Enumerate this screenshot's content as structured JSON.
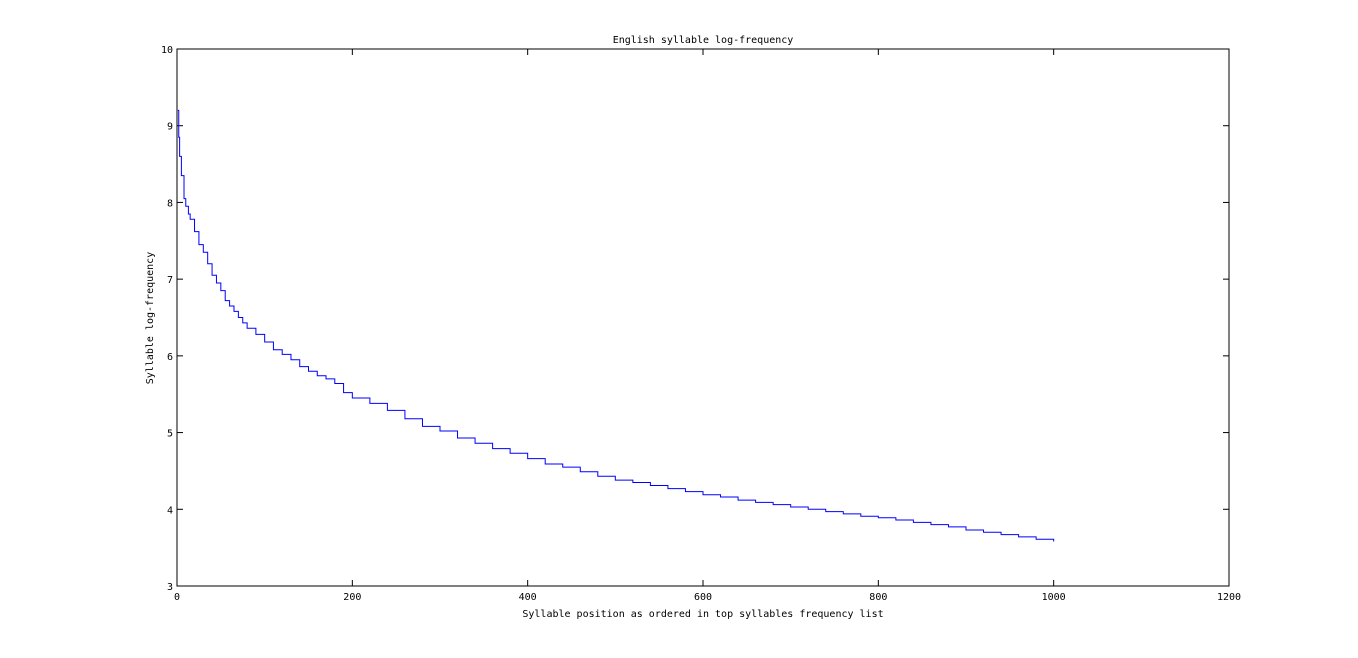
{
  "chart_data": {
    "type": "line",
    "title": "English syllable log-frequency",
    "xlabel": "Syllable position as ordered in top syllables frequency list",
    "ylabel": "Syllable log-frequency",
    "xlim": [
      0,
      1200
    ],
    "ylim": [
      3,
      10
    ],
    "xticks": [
      0,
      200,
      400,
      600,
      800,
      1000,
      1200
    ],
    "yticks": [
      3,
      4,
      5,
      6,
      7,
      8,
      9,
      10
    ],
    "xtick_labels": [
      "0",
      "200",
      "400",
      "600",
      "800",
      "1000",
      "1200"
    ],
    "ytick_labels": [
      "3",
      "4",
      "5",
      "6",
      "7",
      "8",
      "9",
      "10"
    ],
    "grid": false,
    "legend": "none",
    "series": [
      {
        "color": "#0000ff",
        "x": [
          1,
          2,
          3,
          5,
          8,
          10,
          13,
          15,
          20,
          25,
          30,
          35,
          40,
          45,
          50,
          55,
          60,
          65,
          70,
          75,
          80,
          90,
          100,
          110,
          120,
          130,
          140,
          150,
          160,
          170,
          180,
          190,
          200,
          220,
          240,
          260,
          280,
          300,
          320,
          340,
          360,
          380,
          400,
          420,
          440,
          460,
          480,
          500,
          520,
          540,
          560,
          580,
          600,
          620,
          640,
          660,
          680,
          700,
          720,
          740,
          760,
          780,
          800,
          820,
          840,
          860,
          880,
          900,
          920,
          940,
          960,
          980,
          1000
        ],
        "y": [
          9.2,
          8.85,
          8.6,
          8.35,
          8.05,
          7.95,
          7.85,
          7.78,
          7.62,
          7.45,
          7.35,
          7.2,
          7.05,
          6.95,
          6.85,
          6.72,
          6.65,
          6.58,
          6.5,
          6.43,
          6.36,
          6.28,
          6.18,
          6.08,
          6.02,
          5.95,
          5.86,
          5.8,
          5.74,
          5.7,
          5.64,
          5.52,
          5.45,
          5.38,
          5.29,
          5.18,
          5.08,
          5.02,
          4.93,
          4.86,
          4.79,
          4.73,
          4.66,
          4.59,
          4.55,
          4.49,
          4.43,
          4.38,
          4.35,
          4.31,
          4.27,
          4.23,
          4.19,
          4.16,
          4.12,
          4.09,
          4.06,
          4.03,
          4.0,
          3.97,
          3.94,
          3.91,
          3.89,
          3.86,
          3.83,
          3.8,
          3.77,
          3.73,
          3.7,
          3.67,
          3.64,
          3.61,
          3.58
        ]
      }
    ]
  }
}
